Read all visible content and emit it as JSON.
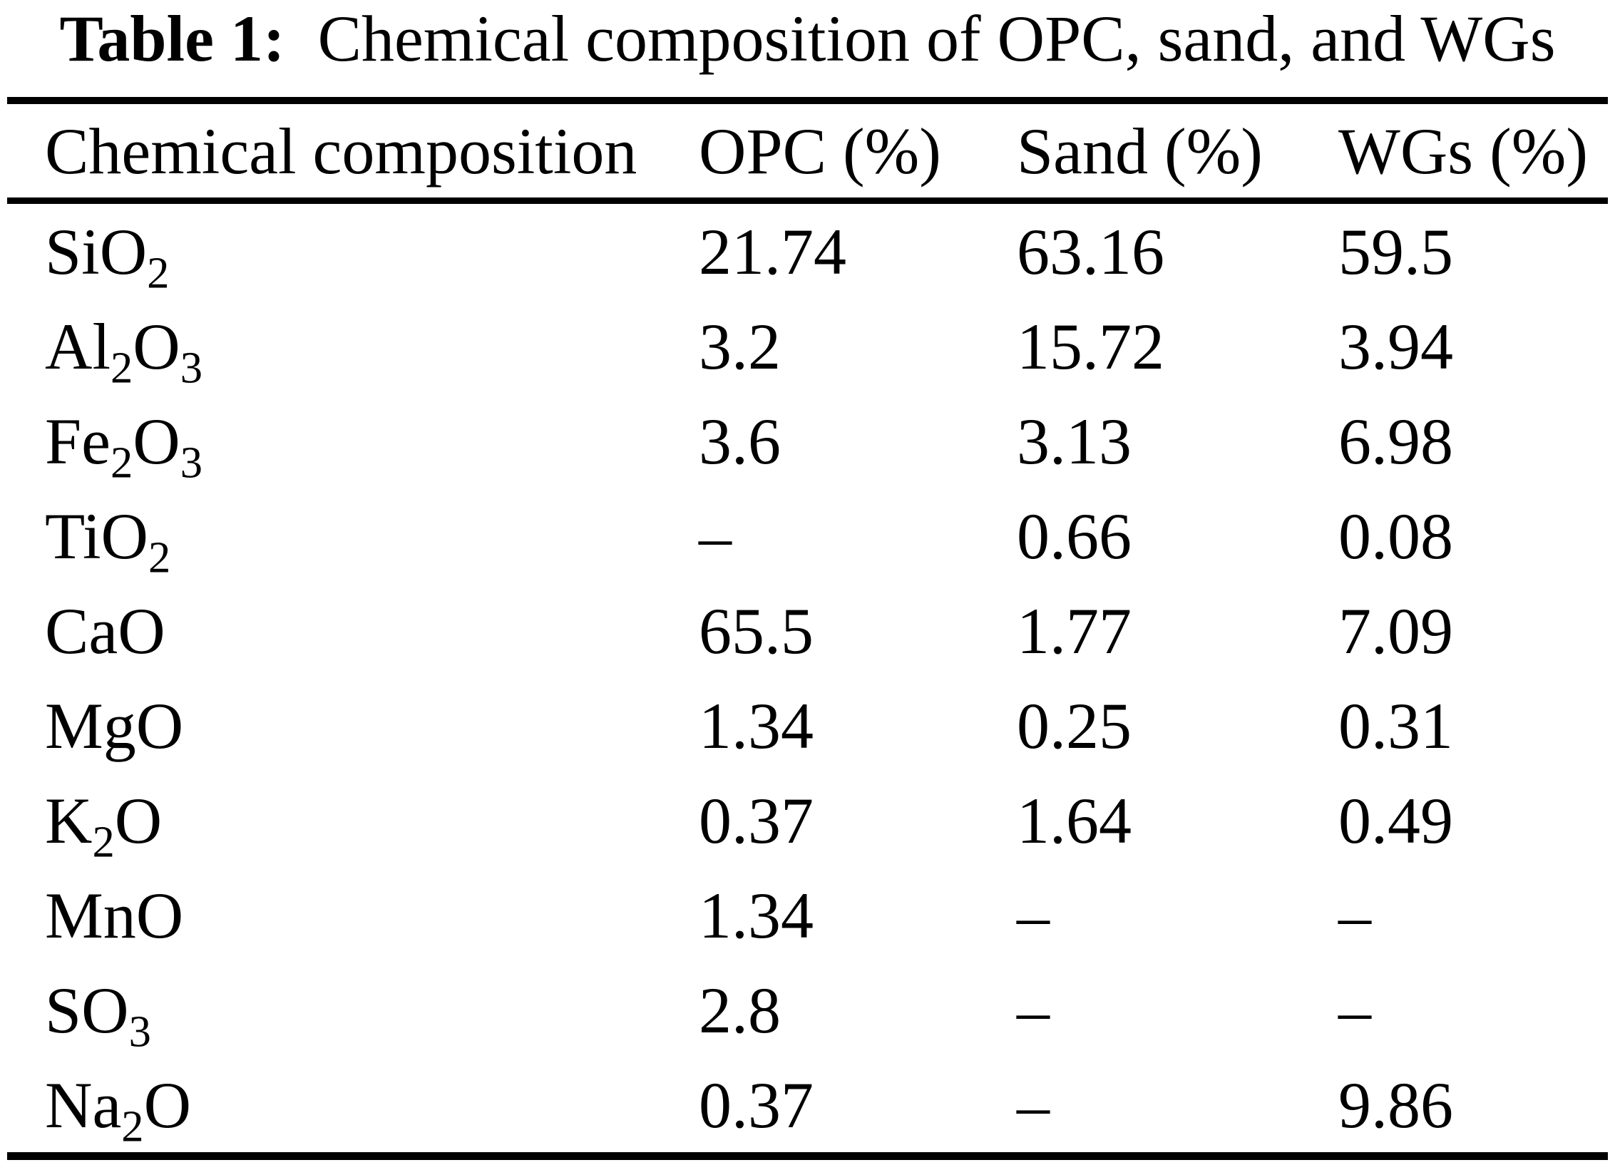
{
  "title": {
    "label": "Table 1:",
    "text": "Chemical composition of OPC, sand, and WGs"
  },
  "ink_color": "#000000",
  "background_color": "#ffffff",
  "table": {
    "columns": [
      "Chemical composition",
      "OPC (%)",
      "Sand (%)",
      "WGs (%)"
    ],
    "rows": [
      {
        "formula": [
          {
            "t": "SiO"
          },
          {
            "t": "2",
            "sub": true
          }
        ],
        "values": [
          "21.74",
          "63.16",
          "59.5"
        ]
      },
      {
        "formula": [
          {
            "t": "Al"
          },
          {
            "t": "2",
            "sub": true
          },
          {
            "t": "O"
          },
          {
            "t": "3",
            "sub": true
          }
        ],
        "values": [
          "3.2",
          "15.72",
          "3.94"
        ]
      },
      {
        "formula": [
          {
            "t": "Fe"
          },
          {
            "t": "2",
            "sub": true
          },
          {
            "t": "O"
          },
          {
            "t": "3",
            "sub": true
          }
        ],
        "values": [
          "3.6",
          "3.13",
          "6.98"
        ]
      },
      {
        "formula": [
          {
            "t": "TiO"
          },
          {
            "t": "2",
            "sub": true
          }
        ],
        "values": [
          "–",
          "0.66",
          "0.08"
        ]
      },
      {
        "formula": [
          {
            "t": "CaO"
          }
        ],
        "values": [
          "65.5",
          "1.77",
          "7.09"
        ]
      },
      {
        "formula": [
          {
            "t": "MgO"
          }
        ],
        "values": [
          "1.34",
          "0.25",
          "0.31"
        ]
      },
      {
        "formula": [
          {
            "t": "K"
          },
          {
            "t": "2",
            "sub": true
          },
          {
            "t": "O"
          }
        ],
        "values": [
          "0.37",
          "1.64",
          "0.49"
        ]
      },
      {
        "formula": [
          {
            "t": "MnO"
          }
        ],
        "values": [
          "1.34",
          "–",
          "–"
        ]
      },
      {
        "formula": [
          {
            "t": "SO"
          },
          {
            "t": "3",
            "sub": true
          }
        ],
        "values": [
          "2.8",
          "–",
          "–"
        ]
      },
      {
        "formula": [
          {
            "t": "Na"
          },
          {
            "t": "2",
            "sub": true
          },
          {
            "t": "O"
          }
        ],
        "values": [
          "0.37",
          "–",
          "9.86"
        ]
      }
    ]
  }
}
